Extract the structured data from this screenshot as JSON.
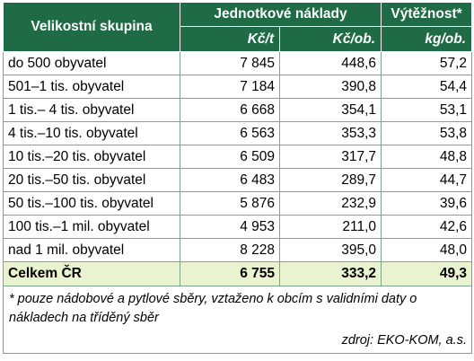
{
  "table": {
    "headers": {
      "group": "Velikostní skupina",
      "cost": "Jednotkové náklady",
      "yield": "Výtěžnost*",
      "unit_cost_t": "Kč/t",
      "unit_cost_ob": "Kč/ob.",
      "unit_yield": "kg/ob."
    },
    "rows": [
      {
        "group": "do 500 obyvatel",
        "cost_t": "7 845",
        "cost_ob": "448,6",
        "yield": "57,2"
      },
      {
        "group": "501–1 tis. obyvatel",
        "cost_t": "7 184",
        "cost_ob": "390,8",
        "yield": "54,4"
      },
      {
        "group": "1 tis.– 4 tis. obyvatel",
        "cost_t": "6 668",
        "cost_ob": "354,1",
        "yield": "53,1"
      },
      {
        "group": "4 tis.–10 tis. obyvatel",
        "cost_t": "6 563",
        "cost_ob": "353,3",
        "yield": "53,8"
      },
      {
        "group": "10 tis.–20 tis. obyvatel",
        "cost_t": "6 509",
        "cost_ob": "317,7",
        "yield": "48,8"
      },
      {
        "group": "20 tis.–50 tis. obyvatel",
        "cost_t": "6 483",
        "cost_ob": "289,7",
        "yield": "44,7"
      },
      {
        "group": "50 tis.–100 tis. obyvatel",
        "cost_t": "5 876",
        "cost_ob": "232,9",
        "yield": "39,6"
      },
      {
        "group": "100 tis.–1 mil. obyvatel",
        "cost_t": "4 953",
        "cost_ob": "211,0",
        "yield": "42,6"
      },
      {
        "group": "nad 1 mil. obyvatel",
        "cost_t": "8 228",
        "cost_ob": "395,0",
        "yield": "48,0"
      }
    ],
    "total": {
      "group": "Celkem ČR",
      "cost_t": "6 755",
      "cost_ob": "333,2",
      "yield": "49,3"
    }
  },
  "footnote": "* pouze nádobové a pytlové sběry, vztaženo k obcím s validními daty o nákladech na tříděný sběr",
  "source": "zdroj: EKO-KOM, a.s.",
  "colors": {
    "header_bg": "#1e6b45",
    "total_bg": "#e9f3cf",
    "border": "#7aa78a"
  }
}
